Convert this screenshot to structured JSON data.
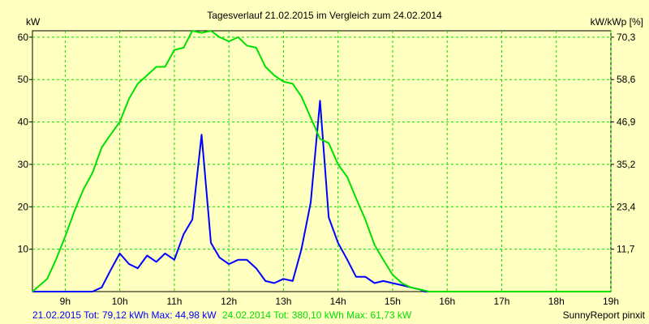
{
  "chart_data": {
    "type": "line",
    "title": "Tagesverlauf 21.02.2015 im Vergleich zum 24.02.2014",
    "left_unit": "kW",
    "right_unit": "kW/kWp [%]",
    "x_ticks": [
      "9h",
      "10h",
      "11h",
      "12h",
      "13h",
      "14h",
      "15h",
      "16h",
      "17h",
      "18h",
      "19h"
    ],
    "y_ticks_left": [
      "10",
      "20",
      "30",
      "40",
      "50",
      "60"
    ],
    "y_ticks_right": [
      "11,7",
      "23,4",
      "35,2",
      "46,9",
      "58,6",
      "70,3"
    ],
    "xlim": [
      8.4,
      19.0
    ],
    "ylim": [
      0,
      61.5
    ],
    "grid": true,
    "series": [
      {
        "name": "21.02.2015",
        "color": "#0000ff",
        "x": [
          8.4,
          8.67,
          8.83,
          9.0,
          9.17,
          9.33,
          9.5,
          9.67,
          9.83,
          10.0,
          10.17,
          10.33,
          10.5,
          10.67,
          10.83,
          11.0,
          11.17,
          11.33,
          11.5,
          11.67,
          11.83,
          12.0,
          12.17,
          12.33,
          12.5,
          12.67,
          12.83,
          13.0,
          13.17,
          13.33,
          13.5,
          13.67,
          13.83,
          14.0,
          14.17,
          14.33,
          14.5,
          14.67,
          14.83,
          15.0,
          15.17,
          15.33,
          15.5,
          15.58,
          15.67,
          15.83,
          16.0,
          16.17,
          16.33,
          16.5,
          16.67,
          16.83,
          17.0,
          17.17,
          17.33,
          17.5,
          17.67,
          17.83,
          18.0,
          18.17,
          18.33,
          18.5,
          18.67,
          18.83,
          19.0
        ],
        "y": [
          0,
          0,
          0,
          0,
          0,
          0,
          0,
          1,
          5,
          9,
          6.5,
          5.5,
          8.5,
          7,
          9,
          7.5,
          13.5,
          17,
          37,
          11.5,
          8,
          6.5,
          7.5,
          7.5,
          5.5,
          2.5,
          2,
          3,
          2.5,
          10,
          21,
          45,
          17.5,
          11.5,
          7.5,
          3.5,
          3.5,
          2,
          2.5,
          2,
          1.5,
          1,
          0.5,
          0,
          0,
          0,
          0,
          0,
          0,
          0,
          0,
          0,
          0,
          0,
          0,
          0,
          0,
          0,
          0,
          0,
          0,
          0,
          0,
          0,
          0
        ]
      },
      {
        "name": "24.02.2014",
        "color": "#00e000",
        "x": [
          8.4,
          8.67,
          8.83,
          9.0,
          9.17,
          9.33,
          9.5,
          9.67,
          9.83,
          10.0,
          10.17,
          10.33,
          10.5,
          10.67,
          10.83,
          11.0,
          11.17,
          11.33,
          11.5,
          11.67,
          11.83,
          12.0,
          12.17,
          12.33,
          12.5,
          12.67,
          12.83,
          13.0,
          13.17,
          13.33,
          13.5,
          13.67,
          13.83,
          14.0,
          14.17,
          14.33,
          14.5,
          14.67,
          14.83,
          15.0,
          15.17,
          15.33,
          15.5,
          15.67,
          15.83,
          16.0,
          16.17,
          16.33,
          16.5,
          16.67,
          16.83,
          17.0,
          17.17,
          17.33,
          17.5,
          17.67,
          17.83,
          18.0,
          18.17,
          18.33,
          18.5,
          18.67,
          18.83,
          19.0
        ],
        "y": [
          0,
          3,
          7.5,
          13,
          19,
          24,
          28,
          34,
          37,
          40,
          45.5,
          49,
          51,
          53,
          53,
          57,
          57.5,
          61.5,
          61,
          61.5,
          60,
          59,
          60,
          58,
          57.5,
          53,
          51,
          49.5,
          49,
          46,
          41,
          36,
          35,
          30,
          27,
          22,
          17,
          11,
          7.5,
          4,
          2,
          1,
          0.5,
          0,
          0,
          0,
          0,
          0,
          0,
          0,
          0,
          0,
          0,
          0,
          0,
          0,
          0,
          0,
          0,
          0,
          0,
          0,
          0,
          0
        ]
      }
    ],
    "footer": [
      {
        "text": "21.02.2015 Tot: 79,12 kWh Max: 44,98 kW",
        "color": "#0000ff"
      },
      {
        "text": "24.02.2014 Tot: 380,10 kWh Max: 61,73 kW",
        "color": "#00e000"
      }
    ],
    "credit": "SunnyReport pinxit"
  }
}
